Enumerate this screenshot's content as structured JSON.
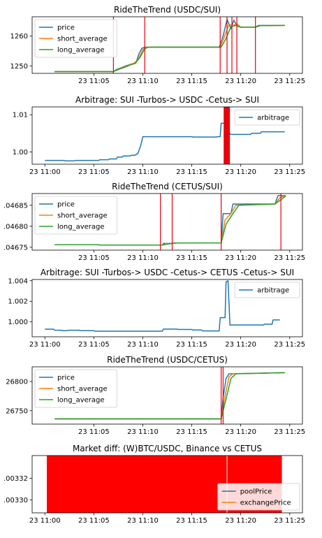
{
  "figure": {
    "background": "#ffffff"
  },
  "colors": {
    "price": "#1f77b4",
    "short_average": "#ff7f0e",
    "long_average": "#2ca02c",
    "event_line": "#e8000b",
    "market_fill": "#ff0000"
  },
  "chart_data": [
    {
      "type": "line",
      "title": "RideTheTrend (USDC/SUI)",
      "xticks": [
        "23 11:05",
        "23 11:10",
        "23 11:15",
        "23 11:20",
        "23 11:25"
      ],
      "xtick_minutes": [
        5,
        10,
        15,
        20,
        25
      ],
      "xlim": [
        -1.3,
        26.3
      ],
      "yticks": [
        "1250",
        "1260"
      ],
      "ytick_values": [
        1250,
        1260
      ],
      "ylim": [
        1247.5,
        1266.5
      ],
      "grid": false,
      "legend": {
        "position": "top-left",
        "entries": [
          "price",
          "short_average",
          "long_average"
        ]
      },
      "series": [
        {
          "name": "price",
          "color": "#1f77b4",
          "points": [
            [
              1,
              1248.1
            ],
            [
              7,
              1248.1
            ],
            [
              7.3,
              1248.8
            ],
            [
              7.8,
              1249.4
            ],
            [
              8.3,
              1250.1
            ],
            [
              8.8,
              1250.6
            ],
            [
              9.3,
              1251.0
            ],
            [
              9.6,
              1254.0
            ],
            [
              9.9,
              1255.9
            ],
            [
              10.2,
              1256.3
            ],
            [
              17.8,
              1256.3
            ],
            [
              18.2,
              1260.0
            ],
            [
              18.6,
              1265.6
            ],
            [
              19.0,
              1262.5
            ],
            [
              19.3,
              1265.4
            ],
            [
              19.6,
              1263.4
            ],
            [
              20.0,
              1263.0
            ],
            [
              21.5,
              1263.0
            ],
            [
              21.8,
              1263.6
            ],
            [
              24.5,
              1263.6
            ]
          ]
        },
        {
          "name": "short_average",
          "color": "#ff7f0e",
          "points": [
            [
              1,
              1248.1
            ],
            [
              7,
              1248.1
            ],
            [
              7.5,
              1248.9
            ],
            [
              8.0,
              1249.5
            ],
            [
              8.5,
              1250.2
            ],
            [
              9.0,
              1250.7
            ],
            [
              9.5,
              1252.0
            ],
            [
              10.0,
              1255.5
            ],
            [
              10.4,
              1256.3
            ],
            [
              17.9,
              1256.3
            ],
            [
              18.3,
              1259.5
            ],
            [
              18.8,
              1264.0
            ],
            [
              19.2,
              1263.5
            ],
            [
              19.6,
              1264.2
            ],
            [
              20.0,
              1263.0
            ],
            [
              21.5,
              1263.0
            ],
            [
              21.9,
              1263.5
            ],
            [
              24.5,
              1263.6
            ]
          ]
        },
        {
          "name": "long_average",
          "color": "#2ca02c",
          "points": [
            [
              1,
              1248.1
            ],
            [
              7,
              1248.1
            ],
            [
              7.6,
              1248.9
            ],
            [
              8.2,
              1249.6
            ],
            [
              8.7,
              1250.3
            ],
            [
              9.2,
              1250.8
            ],
            [
              9.7,
              1252.8
            ],
            [
              10.2,
              1255.8
            ],
            [
              10.6,
              1256.3
            ],
            [
              18.0,
              1256.3
            ],
            [
              18.5,
              1259.2
            ],
            [
              19.0,
              1263.2
            ],
            [
              19.5,
              1263.6
            ],
            [
              20.0,
              1263.0
            ],
            [
              21.5,
              1263.0
            ],
            [
              22.0,
              1263.5
            ],
            [
              24.5,
              1263.6
            ]
          ]
        }
      ],
      "vlines": [
        7,
        10.2,
        17.9,
        18.6,
        19.1,
        19.6,
        21.5
      ]
    },
    {
      "type": "line",
      "title": "Arbitrage: SUI -Turbos-> USDC -Cetus-> SUI",
      "xticks": [
        "23 11:00",
        "23 11:05",
        "23 11:10",
        "23 11:15",
        "23 11:20",
        "23 11:25"
      ],
      "xtick_minutes": [
        0,
        5,
        10,
        15,
        20,
        25
      ],
      "xlim": [
        -1.3,
        26.3
      ],
      "yticks": [
        "1.00",
        "1.01"
      ],
      "ytick_values": [
        1.0,
        1.01
      ],
      "ylim": [
        0.9967,
        1.0121
      ],
      "grid": false,
      "legend": {
        "position": "top-right",
        "entries": [
          "arbitrage"
        ]
      },
      "series": [
        {
          "name": "arbitrage",
          "color": "#1f77b4",
          "points": [
            [
              0,
              0.9977
            ],
            [
              2,
              0.9977
            ],
            [
              2.1,
              0.9976
            ],
            [
              3,
              0.9976
            ],
            [
              3.1,
              0.9977
            ],
            [
              5.5,
              0.9977
            ],
            [
              5.6,
              0.9979
            ],
            [
              6.5,
              0.9979
            ],
            [
              6.6,
              0.9981
            ],
            [
              7.3,
              0.9981
            ],
            [
              7.4,
              0.9986
            ],
            [
              7.9,
              0.9986
            ],
            [
              8,
              0.9989
            ],
            [
              8.7,
              0.9989
            ],
            [
              8.8,
              0.9991
            ],
            [
              9.2,
              0.9991
            ],
            [
              9.5,
              0.9996
            ],
            [
              9.8,
              1.0018
            ],
            [
              10.0,
              1.0041
            ],
            [
              15.0,
              1.0041
            ],
            [
              15.1,
              1.004
            ],
            [
              17.5,
              1.004
            ],
            [
              17.6,
              1.0041
            ],
            [
              17.9,
              1.0041
            ],
            [
              18.0,
              1.0077
            ],
            [
              18.3,
              1.0077
            ],
            [
              18.4,
              1.0069
            ],
            [
              18.7,
              1.0069
            ],
            [
              18.9,
              1.0047
            ],
            [
              21.0,
              1.0047
            ],
            [
              21.1,
              1.005
            ],
            [
              22.0,
              1.005
            ],
            [
              22.1,
              1.0054
            ],
            [
              24.5,
              1.0054
            ]
          ]
        }
      ],
      "vlines": [
        18.3,
        18.35,
        18.4,
        18.45,
        18.5,
        18.55,
        18.6,
        18.65,
        18.7,
        18.75,
        18.8,
        18.85
      ]
    },
    {
      "type": "line",
      "title": "RideTheTrend (CETUS/SUI)",
      "xticks": [
        "23 11:05",
        "23 11:10",
        "23 11:15",
        "23 11:20",
        "23 11:25"
      ],
      "xtick_minutes": [
        5,
        10,
        15,
        20,
        25
      ],
      "xlim": [
        -1.3,
        26.3
      ],
      "yticks": [
        ".04675",
        ".04680",
        ".04685"
      ],
      "ytick_values": [
        0.04675,
        0.0468,
        0.04685
      ],
      "ylim": [
        0.046743,
        0.046878
      ],
      "grid": false,
      "legend": {
        "position": "top-left",
        "entries": [
          "price",
          "short_average",
          "long_average"
        ]
      },
      "series": [
        {
          "name": "price",
          "color": "#1f77b4",
          "points": [
            [
              1,
              0.046756
            ],
            [
              5.5,
              0.046756
            ],
            [
              5.6,
              0.046755
            ],
            [
              12,
              0.046755
            ],
            [
              12.1,
              0.046759
            ],
            [
              13,
              0.046759
            ],
            [
              13.1,
              0.04676
            ],
            [
              18,
              0.04676
            ],
            [
              18.2,
              0.04683
            ],
            [
              19.0,
              0.04683
            ],
            [
              19.2,
              0.046853
            ],
            [
              23.5,
              0.046853
            ],
            [
              23.8,
              0.046873
            ],
            [
              24.6,
              0.046873
            ]
          ]
        },
        {
          "name": "short_average",
          "color": "#ff7f0e",
          "points": [
            [
              1,
              0.046756
            ],
            [
              5.5,
              0.046756
            ],
            [
              5.6,
              0.046755
            ],
            [
              12,
              0.046755
            ],
            [
              12.3,
              0.046758
            ],
            [
              13,
              0.046759
            ],
            [
              13.3,
              0.04676
            ],
            [
              18,
              0.04676
            ],
            [
              18.4,
              0.046815
            ],
            [
              19.0,
              0.04683
            ],
            [
              19.5,
              0.04685
            ],
            [
              23.5,
              0.046853
            ],
            [
              24.0,
              0.046868
            ],
            [
              24.6,
              0.046873
            ]
          ]
        },
        {
          "name": "long_average",
          "color": "#2ca02c",
          "points": [
            [
              1,
              0.046756
            ],
            [
              5.5,
              0.046756
            ],
            [
              5.6,
              0.046755
            ],
            [
              12,
              0.046755
            ],
            [
              12.4,
              0.046757
            ],
            [
              13.0,
              0.046759
            ],
            [
              13.5,
              0.04676
            ],
            [
              18,
              0.04676
            ],
            [
              18.5,
              0.046805
            ],
            [
              19.2,
              0.04683
            ],
            [
              19.8,
              0.04685
            ],
            [
              23.5,
              0.046853
            ],
            [
              24.2,
              0.046865
            ],
            [
              24.6,
              0.046872
            ]
          ]
        }
      ],
      "vlines": [
        11.8,
        13.0,
        18.0,
        24.1
      ]
    },
    {
      "type": "line",
      "title": "Arbitrage: SUI -Turbos-> USDC -Cetus-> CETUS -Cetus-> SUI",
      "xticks": [
        "23 11:00",
        "23 11:05",
        "23 11:10",
        "23 11:15",
        "23 11:20",
        "23 11:25"
      ],
      "xtick_minutes": [
        0,
        5,
        10,
        15,
        20,
        25
      ],
      "xlim": [
        -1.3,
        26.3
      ],
      "yticks": [
        "1.000",
        "1.002",
        "1.004"
      ],
      "ytick_values": [
        1.0,
        1.002,
        1.004
      ],
      "ylim": [
        0.99855,
        1.00412
      ],
      "grid": false,
      "legend": {
        "position": "top-right",
        "entries": [
          "arbitrage"
        ]
      },
      "series": [
        {
          "name": "arbitrage",
          "color": "#1f77b4",
          "points": [
            [
              0,
              0.99929
            ],
            [
              0.9,
              0.99929
            ],
            [
              1.0,
              0.99919
            ],
            [
              1.7,
              0.99919
            ],
            [
              1.8,
              0.99914
            ],
            [
              2.3,
              0.99914
            ],
            [
              2.4,
              0.99919
            ],
            [
              3.5,
              0.99919
            ],
            [
              3.6,
              0.99914
            ],
            [
              5,
              0.99914
            ],
            [
              5.1,
              0.99909
            ],
            [
              12.0,
              0.99909
            ],
            [
              12.1,
              0.9993
            ],
            [
              13.5,
              0.9993
            ],
            [
              13.6,
              0.99926
            ],
            [
              15.0,
              0.99926
            ],
            [
              15.1,
              0.99921
            ],
            [
              16,
              0.99921
            ],
            [
              16.1,
              0.99912
            ],
            [
              17.8,
              0.99912
            ],
            [
              17.9,
              1.00041
            ],
            [
              18.4,
              1.00041
            ],
            [
              18.5,
              1.00388
            ],
            [
              18.7,
              1.004
            ],
            [
              18.9,
              0.9997
            ],
            [
              22.3,
              0.9997
            ],
            [
              22.4,
              0.99977
            ],
            [
              23.2,
              0.99977
            ],
            [
              23.3,
              1.00019
            ],
            [
              24.0,
              1.00019
            ]
          ]
        }
      ],
      "vlines": []
    },
    {
      "type": "line",
      "title": "RideTheTrend (USDC/CETUS)",
      "xticks": [
        "23 11:05",
        "23 11:10",
        "23 11:15",
        "23 11:20",
        "23 11:25"
      ],
      "xtick_minutes": [
        5,
        10,
        15,
        20,
        25
      ],
      "xlim": [
        -1.3,
        26.3
      ],
      "yticks": [
        "26750",
        "26800"
      ],
      "ytick_values": [
        26750,
        26800
      ],
      "ylim": [
        26727,
        26825
      ],
      "grid": false,
      "legend": {
        "position": "top-left",
        "entries": [
          "price",
          "short_average",
          "long_average"
        ]
      },
      "series": [
        {
          "name": "price",
          "color": "#1f77b4",
          "points": [
            [
              1,
              26736
            ],
            [
              18.0,
              26736
            ],
            [
              18.2,
              26772
            ],
            [
              18.5,
              26805
            ],
            [
              18.8,
              26813
            ],
            [
              24.5,
              26815
            ]
          ]
        },
        {
          "name": "short_average",
          "color": "#ff7f0e",
          "points": [
            [
              1,
              26736
            ],
            [
              18.0,
              26736
            ],
            [
              18.4,
              26775
            ],
            [
              18.8,
              26808
            ],
            [
              19.2,
              26813
            ],
            [
              24.5,
              26815
            ]
          ]
        },
        {
          "name": "long_average",
          "color": "#2ca02c",
          "points": [
            [
              1,
              26736
            ],
            [
              18.0,
              26736
            ],
            [
              18.5,
              26770
            ],
            [
              19.0,
              26805
            ],
            [
              19.5,
              26813
            ],
            [
              24.5,
              26815
            ]
          ]
        }
      ],
      "vlines": [
        18.0,
        18.2
      ]
    },
    {
      "type": "area",
      "title": "Market diff: (W)BTC/USDC, Binance vs CETUS",
      "xticks": [
        "23 11:00",
        "23 11:05",
        "23 11:10",
        "23 11:15",
        "23 11:20",
        "23 11:25"
      ],
      "xtick_minutes": [
        0,
        5,
        10,
        15,
        20,
        25
      ],
      "xlim": [
        -1.3,
        26.3
      ],
      "yticks": [
        ".00330",
        ".00332"
      ],
      "ytick_values": [
        0.0033,
        0.00332
      ],
      "ylim": [
        0.003288,
        0.003341
      ],
      "grid": false,
      "legend": {
        "position": "bottom-right",
        "entries": [
          "poolPrice",
          "exchangePrice"
        ]
      },
      "fill": {
        "x_from": 0.2,
        "x_to": 24.2,
        "color": "#ff0000"
      },
      "series": [
        {
          "name": "poolPrice",
          "color": "#1f77b4",
          "points": []
        },
        {
          "name": "exchangePrice",
          "color": "#ff7f0e",
          "points": []
        }
      ],
      "white_line_x": 18.6,
      "vlines": []
    }
  ]
}
